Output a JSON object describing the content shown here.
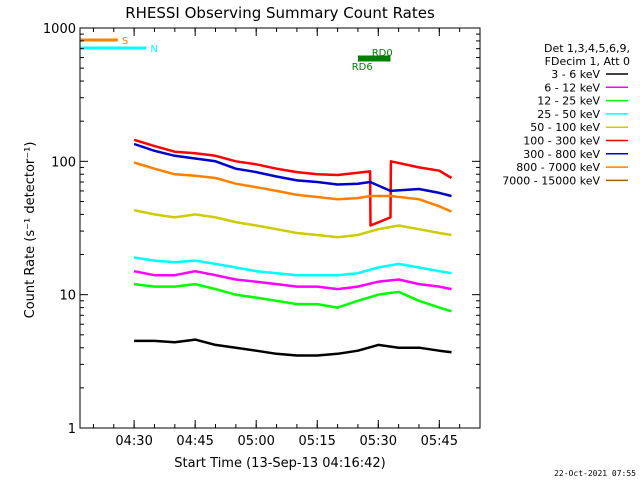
{
  "chart_data": {
    "type": "line",
    "title": "RHESSI Observing Summary Count Rates",
    "xlabel": "Start Time (13-Sep-13 04:16:42)",
    "ylabel": "Count Rate (s⁻¹ detector⁻¹)",
    "y_scale": "log",
    "ylim": [
      1,
      1000
    ],
    "xlim": [
      "04:16:42",
      "05:55:00"
    ],
    "x_ticks": [
      "04:30",
      "04:45",
      "05:00",
      "05:15",
      "05:30",
      "05:45"
    ],
    "y_ticks": [
      "1",
      "10",
      "100",
      "1000"
    ],
    "legend_header": [
      "Det 1,3,4,5,6,9,",
      "FDecim 1, Att 0"
    ],
    "legend_placement": "right",
    "series": [
      {
        "name": "3 - 6 keV",
        "color": "#000000",
        "start": "04:30:00",
        "end": "05:48:00",
        "x": [
          "04:30",
          "04:35",
          "04:40",
          "04:45",
          "04:50",
          "04:55",
          "05:00",
          "05:05",
          "05:10",
          "05:15",
          "05:20",
          "05:25",
          "05:30",
          "05:35",
          "05:40",
          "05:45",
          "05:48"
        ],
        "y": [
          4.5,
          4.5,
          4.4,
          4.6,
          4.2,
          4.0,
          3.8,
          3.6,
          3.5,
          3.5,
          3.6,
          3.8,
          4.2,
          4.0,
          4.0,
          3.8,
          3.7
        ]
      },
      {
        "name": "6 - 12 keV",
        "color": "#ff00ff",
        "start": "04:30:00",
        "end": "05:48:00",
        "x": [
          "04:30",
          "04:35",
          "04:40",
          "04:45",
          "04:50",
          "04:55",
          "05:00",
          "05:05",
          "05:10",
          "05:15",
          "05:20",
          "05:25",
          "05:30",
          "05:35",
          "05:40",
          "05:45",
          "05:48"
        ],
        "y": [
          15,
          14,
          14,
          15,
          14,
          13,
          12.5,
          12,
          11.5,
          11.5,
          11,
          11.5,
          12.5,
          13,
          12,
          11.5,
          11
        ]
      },
      {
        "name": "12 - 25 keV",
        "color": "#00ff00",
        "start": "04:30:00",
        "end": "05:48:00",
        "x": [
          "04:30",
          "04:35",
          "04:40",
          "04:45",
          "04:50",
          "04:55",
          "05:00",
          "05:05",
          "05:10",
          "05:15",
          "05:20",
          "05:25",
          "05:30",
          "05:35",
          "05:40",
          "05:45",
          "05:48"
        ],
        "y": [
          12,
          11.5,
          11.5,
          12,
          11,
          10,
          9.5,
          9,
          8.5,
          8.5,
          8,
          9,
          10,
          10.5,
          9,
          8,
          7.5
        ]
      },
      {
        "name": "25 - 50 keV",
        "color": "#00ffff",
        "start": "04:30:00",
        "end": "05:48:00",
        "x": [
          "04:30",
          "04:35",
          "04:40",
          "04:45",
          "04:50",
          "04:55",
          "05:00",
          "05:05",
          "05:10",
          "05:15",
          "05:20",
          "05:25",
          "05:30",
          "05:35",
          "05:40",
          "05:45",
          "05:48"
        ],
        "y": [
          19,
          18,
          17.5,
          18,
          17,
          16,
          15,
          14.5,
          14,
          14,
          14,
          14.5,
          16,
          17,
          16,
          15,
          14.5
        ]
      },
      {
        "name": "50 - 100 keV",
        "color": "#cccc00",
        "start": "04:30:00",
        "end": "05:48:00",
        "x": [
          "04:30",
          "04:35",
          "04:40",
          "04:45",
          "04:50",
          "04:55",
          "05:00",
          "05:05",
          "05:10",
          "05:15",
          "05:20",
          "05:25",
          "05:30",
          "05:35",
          "05:40",
          "05:45",
          "05:48"
        ],
        "y": [
          43,
          40,
          38,
          40,
          38,
          35,
          33,
          31,
          29,
          28,
          27,
          28,
          31,
          33,
          31,
          29,
          28
        ]
      },
      {
        "name": "100 - 300 keV",
        "color": "#ff0000",
        "start": "04:30:00",
        "end": "05:48:00",
        "x": [
          "04:30",
          "04:35",
          "04:40",
          "04:45",
          "04:50",
          "04:55",
          "05:00",
          "05:05",
          "05:10",
          "05:15",
          "05:20",
          "05:25",
          "05:28",
          "05:28.1",
          "05:33",
          "05:33.1",
          "05:40",
          "05:45",
          "05:48"
        ],
        "y": [
          145,
          130,
          118,
          115,
          110,
          100,
          95,
          88,
          83,
          80,
          79,
          82,
          84,
          33,
          38,
          100,
          90,
          85,
          75
        ]
      },
      {
        "name": "300 - 800 keV",
        "color": "#0000cc",
        "start": "04:30:00",
        "end": "05:48:00",
        "x": [
          "04:30",
          "04:35",
          "04:40",
          "04:45",
          "04:50",
          "04:55",
          "05:00",
          "05:05",
          "05:10",
          "05:15",
          "05:20",
          "05:25",
          "05:28",
          "05:33",
          "05:40",
          "05:45",
          "05:48"
        ],
        "y": [
          135,
          120,
          110,
          105,
          100,
          88,
          83,
          77,
          72,
          70,
          67,
          68,
          70,
          60,
          62,
          58,
          55
        ]
      },
      {
        "name": "800 - 7000 keV",
        "color": "#ff8000",
        "start": "04:30:00",
        "end": "05:48:00",
        "x": [
          "04:30",
          "04:35",
          "04:40",
          "04:45",
          "04:50",
          "04:55",
          "05:00",
          "05:05",
          "05:10",
          "05:15",
          "05:20",
          "05:25",
          "05:28",
          "05:33",
          "05:40",
          "05:45",
          "05:48"
        ],
        "y": [
          98,
          88,
          80,
          78,
          75,
          68,
          64,
          60,
          56,
          54,
          52,
          53,
          55,
          55,
          52,
          46,
          42
        ]
      },
      {
        "name": "7000 - 15000 keV",
        "color": "#996600",
        "start": "04:30:00",
        "end": "05:48:00",
        "x": [],
        "y": []
      }
    ],
    "flags": [
      {
        "name": "S",
        "color": "#ff8000",
        "x_start": "04:16:42",
        "x_end": "04:26:00"
      },
      {
        "name": "N",
        "color": "#00ffff",
        "x_start": "04:16:42",
        "x_end": "04:33:00"
      },
      {
        "name": "RD0",
        "color": "#008000",
        "x_start": "05:25:00",
        "x_end": "05:33:00"
      },
      {
        "name": "RD6",
        "color": "#008000",
        "x_start": "05:25:00",
        "x_end": "05:33:00"
      }
    ],
    "grid": false
  },
  "footer": {
    "date": "22-Oct-2021 07:55"
  }
}
